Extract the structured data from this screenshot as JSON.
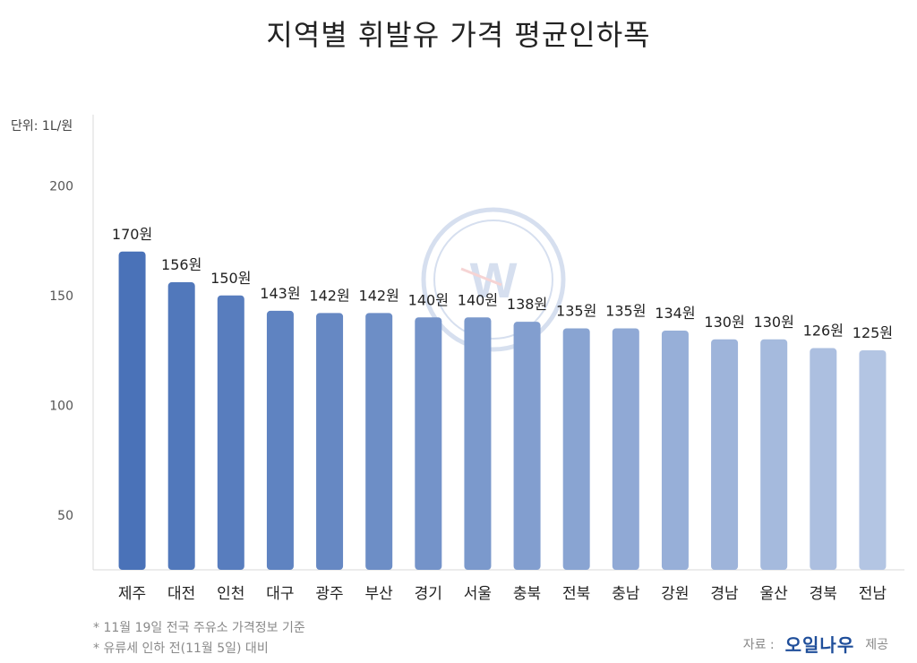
{
  "chart_data": {
    "type": "bar",
    "title": "지역별 휘발유 가격 평균인하폭",
    "unit_label": "단위: 1L/원",
    "categories": [
      "제주",
      "대전",
      "인천",
      "대구",
      "광주",
      "부산",
      "경기",
      "서울",
      "충북",
      "전북",
      "충남",
      "강원",
      "경남",
      "울산",
      "경북",
      "전남"
    ],
    "values": [
      170,
      156,
      150,
      143,
      142,
      142,
      140,
      140,
      138,
      135,
      135,
      134,
      130,
      130,
      126,
      125
    ],
    "value_labels": [
      "170원",
      "156원",
      "150원",
      "143원",
      "142원",
      "142원",
      "140원",
      "140원",
      "138원",
      "135원",
      "135원",
      "134원",
      "130원",
      "130원",
      "126원",
      "125원"
    ],
    "yticks": [
      50,
      100,
      150,
      200
    ],
    "ylim": [
      25,
      225
    ],
    "grid": false,
    "bar_color_start": "#4a72b8",
    "bar_color_end": "#b3c5e3"
  },
  "footnotes": [
    "* 11월 19일 전국 주유소 가격정보 기준",
    "* 유류세 인하 전(11월 5일) 대비"
  ],
  "source": {
    "label": "자료 :",
    "brand": "오일나우",
    "suffix": "제공"
  },
  "watermark_icon": "gauge-w-logo-icon"
}
